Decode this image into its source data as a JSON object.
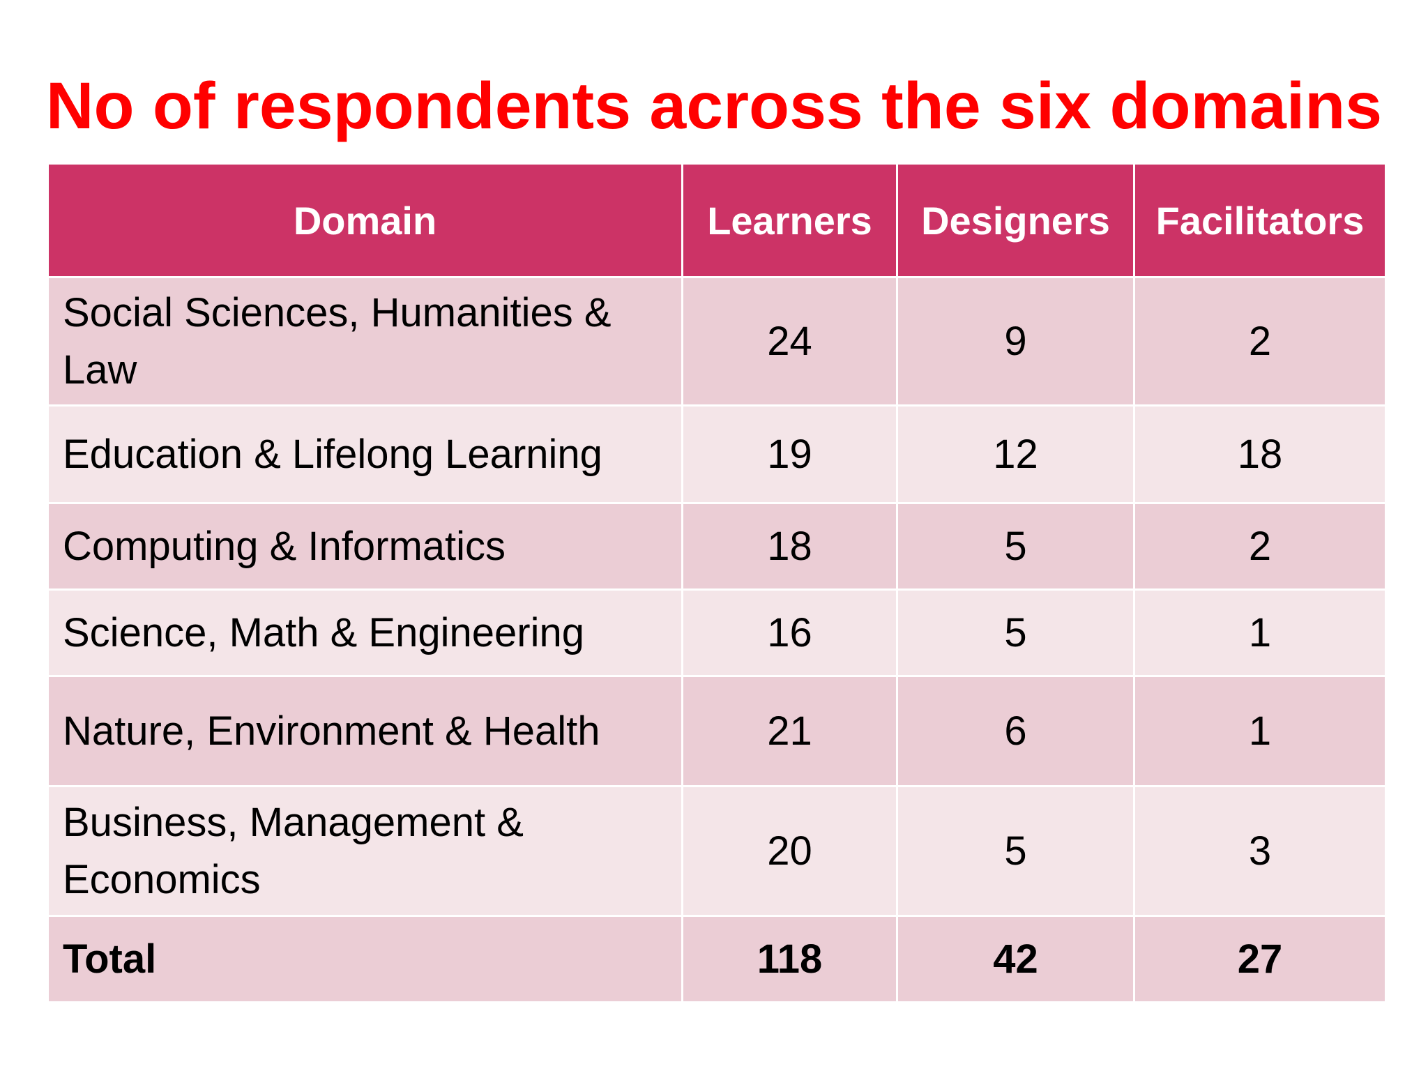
{
  "title": "No of respondents across the six domains",
  "table": {
    "headers": [
      "Domain",
      "Learners",
      "Designers",
      "Facilitators"
    ],
    "rows": [
      {
        "domain": "Social Sciences, Humanities & Law",
        "learners": "24",
        "designers": "9",
        "facilitators": "2"
      },
      {
        "domain": "Education & Lifelong Learning",
        "learners": "19",
        "designers": "12",
        "facilitators": "18"
      },
      {
        "domain": "Computing & Informatics",
        "learners": "18",
        "designers": "5",
        "facilitators": "2"
      },
      {
        "domain": "Science, Math & Engineering",
        "learners": "16",
        "designers": "5",
        "facilitators": "1"
      },
      {
        "domain": "Nature, Environment & Health",
        "learners": "21",
        "designers": "6",
        "facilitators": "1"
      },
      {
        "domain": "Business, Management & Economics",
        "learners": "20",
        "designers": "5",
        "facilitators": "3"
      }
    ],
    "total": {
      "label": "Total",
      "learners": "118",
      "designers": "42",
      "facilitators": "27"
    }
  },
  "colors": {
    "title": "#ff0000",
    "header_bg": "#cc3366",
    "row_dark": "#ebcdd5",
    "row_light": "#f4e5e8"
  }
}
